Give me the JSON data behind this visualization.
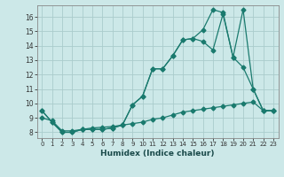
{
  "title": "",
  "xlabel": "Humidex (Indice chaleur)",
  "bg_color": "#cce8e8",
  "grid_color": "#aacccc",
  "line_color": "#1a7a6e",
  "xlim": [
    -0.5,
    23.5
  ],
  "ylim": [
    7.6,
    16.8
  ],
  "xticks": [
    0,
    1,
    2,
    3,
    4,
    5,
    6,
    7,
    8,
    9,
    10,
    11,
    12,
    13,
    14,
    15,
    16,
    17,
    18,
    19,
    20,
    21,
    22,
    23
  ],
  "yticks": [
    8,
    9,
    10,
    11,
    12,
    13,
    14,
    15,
    16
  ],
  "line1_x": [
    0,
    1,
    2,
    3,
    4,
    5,
    6,
    7,
    8,
    9,
    10,
    11,
    12,
    13,
    14,
    15,
    16,
    17,
    18,
    19,
    20,
    21,
    22,
    23
  ],
  "line1_y": [
    9.5,
    8.7,
    8.0,
    8.0,
    8.2,
    8.2,
    8.2,
    8.3,
    8.5,
    9.9,
    10.5,
    12.4,
    12.4,
    13.3,
    14.4,
    14.5,
    14.3,
    13.7,
    16.2,
    13.2,
    12.5,
    11.0,
    9.5,
    9.5
  ],
  "line2_x": [
    0,
    1,
    2,
    3,
    4,
    5,
    6,
    7,
    8,
    9,
    10,
    11,
    12,
    13,
    14,
    15,
    16,
    17,
    18,
    19,
    20,
    21,
    22,
    23
  ],
  "line2_y": [
    9.5,
    8.7,
    8.0,
    8.0,
    8.2,
    8.2,
    8.2,
    8.3,
    8.5,
    9.9,
    10.5,
    12.4,
    12.4,
    13.3,
    14.4,
    14.5,
    15.1,
    16.5,
    16.3,
    13.2,
    16.5,
    11.0,
    9.5,
    9.5
  ],
  "line3_x": [
    0,
    1,
    2,
    3,
    4,
    5,
    6,
    7,
    8,
    9,
    10,
    11,
    12,
    13,
    14,
    15,
    16,
    17,
    18,
    19,
    20,
    21,
    22,
    23
  ],
  "line3_y": [
    9.0,
    8.8,
    8.1,
    8.1,
    8.2,
    8.3,
    8.35,
    8.4,
    8.5,
    8.6,
    8.7,
    8.9,
    9.0,
    9.2,
    9.4,
    9.5,
    9.6,
    9.7,
    9.8,
    9.9,
    10.0,
    10.1,
    9.5,
    9.5
  ]
}
